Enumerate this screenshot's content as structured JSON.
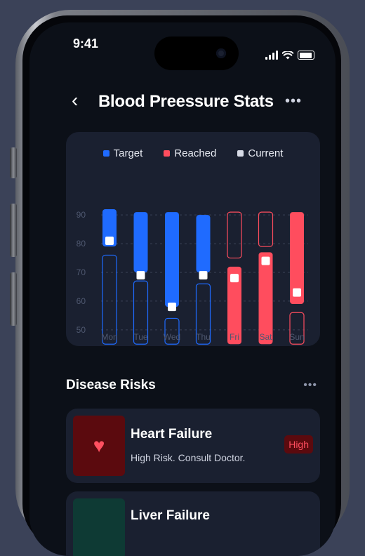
{
  "status": {
    "time": "9:41"
  },
  "header": {
    "title": "Blood Preessure Stats"
  },
  "legend": [
    {
      "label": "Target",
      "color": "#1f6bff"
    },
    {
      "label": "Reached",
      "color": "#ff4d5e"
    },
    {
      "label": "Current",
      "color": "#d7dbe6"
    }
  ],
  "chart_data": {
    "type": "bar",
    "y_ticks": [
      90,
      80,
      70,
      60,
      50
    ],
    "ylim": [
      48,
      92
    ],
    "categories": [
      "Mon",
      "Tue",
      "Wed",
      "Thu",
      "Fri",
      "Sat",
      "Sun"
    ],
    "series": [
      {
        "name": "Target",
        "color": "#1f6bff",
        "filled": [
          [
            79,
            92
          ],
          [
            70,
            91
          ],
          [
            58,
            91
          ],
          [
            70,
            90
          ],
          null,
          null,
          null
        ],
        "outline": [
          [
            45,
            76
          ],
          [
            45,
            67
          ],
          [
            45,
            54
          ],
          [
            45,
            66
          ],
          null,
          null,
          null
        ]
      },
      {
        "name": "Reached",
        "color": "#ff4d5e",
        "filled": [
          null,
          null,
          null,
          null,
          [
            45,
            72
          ],
          [
            45,
            77
          ],
          [
            59,
            91
          ]
        ],
        "outline": [
          null,
          null,
          null,
          null,
          [
            75,
            91
          ],
          [
            79,
            91
          ],
          [
            45,
            56
          ]
        ]
      }
    ],
    "current": [
      81,
      69,
      58,
      69,
      68,
      74,
      63
    ]
  },
  "sections": {
    "disease_risks": "Disease Risks"
  },
  "risks": [
    {
      "title": "Heart Failure",
      "desc": "High Risk. Consult Doctor.",
      "badge": "High",
      "icon": "heart-icon",
      "accent": "#ff4d5e"
    },
    {
      "title": "Liver Failure",
      "desc": "",
      "badge": "",
      "icon": "liver-icon",
      "accent": "#2a8f7a"
    }
  ]
}
